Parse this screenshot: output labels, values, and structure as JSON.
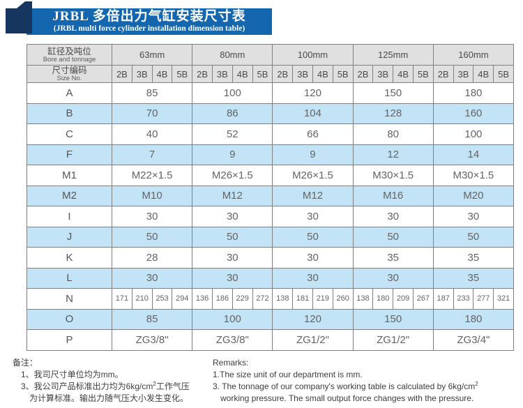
{
  "banner": {
    "title": "JRBL 多倍出力气缸安装尺寸表",
    "subtitle": "(JRBL multi force cylinder installation dimension table)",
    "banner_color": "#1467ae",
    "accent_color": "#16355f"
  },
  "table": {
    "corner_row1": {
      "zh": "缸径及吨位",
      "en": "Bore and tonnage"
    },
    "corner_row2": {
      "zh": "尺寸编码",
      "en": "Size No."
    },
    "groups": [
      "63mm",
      "80mm",
      "100mm",
      "125mm",
      "160mm"
    ],
    "sub_columns": [
      "2B",
      "3B",
      "4B",
      "5B"
    ],
    "rows": [
      {
        "label": "A",
        "shade": "w",
        "values": [
          "85",
          "100",
          "120",
          "150",
          "180"
        ]
      },
      {
        "label": "B",
        "shade": "b",
        "values": [
          "70",
          "86",
          "104",
          "128",
          "160"
        ]
      },
      {
        "label": "C",
        "shade": "w",
        "values": [
          "40",
          "52",
          "66",
          "80",
          "100"
        ]
      },
      {
        "label": "F",
        "shade": "b",
        "values": [
          "7",
          "9",
          "9",
          "12",
          "14"
        ]
      },
      {
        "label": "M1",
        "shade": "w",
        "values": [
          "M22×1.5",
          "M26×1.5",
          "M26×1.5",
          "M30×1.5",
          "M30×1.5"
        ]
      },
      {
        "label": "M2",
        "shade": "b",
        "values": [
          "M10",
          "M12",
          "M12",
          "M16",
          "M20"
        ]
      },
      {
        "label": "I",
        "shade": "w",
        "values": [
          "30",
          "30",
          "30",
          "30",
          "30"
        ]
      },
      {
        "label": "J",
        "shade": "b",
        "values": [
          "50",
          "50",
          "50",
          "50",
          "50"
        ]
      },
      {
        "label": "K",
        "shade": "w",
        "values": [
          "28",
          "30",
          "30",
          "35",
          "35"
        ]
      },
      {
        "label": "L",
        "shade": "b",
        "values": [
          "30",
          "30",
          "30",
          "30",
          "35"
        ]
      },
      {
        "label": "N",
        "shade": "w",
        "sub_values": [
          [
            "171",
            "210",
            "253",
            "294"
          ],
          [
            "136",
            "186",
            "229",
            "272"
          ],
          [
            "138",
            "181",
            "219",
            "260"
          ],
          [
            "138",
            "180",
            "209",
            "267"
          ],
          [
            "187",
            "233",
            "277",
            "321"
          ]
        ]
      },
      {
        "label": "O",
        "shade": "b",
        "values": [
          "85",
          "100",
          "120",
          "150",
          "180"
        ]
      },
      {
        "label": "P",
        "shade": "w",
        "values": [
          "ZG3/8\"",
          "ZG3/8\"",
          "ZG1/2\"",
          "ZG1/2\"",
          "ZG3/4\""
        ]
      }
    ],
    "colors": {
      "row_blue": "#c3e3f6",
      "header_gray": "#e0e0e0",
      "border_gray": "#7f7f7f",
      "border_blue": "#4b8fc0"
    }
  },
  "footer": {
    "left": {
      "heading": "备注：",
      "note1": "1、我司尺寸单位均为mm。",
      "note2_pre": "3、我公司产品标准出力均为6kg/cm",
      "note2_sup": "2",
      "note2_post": "工作气压",
      "note2_cont": "为计算标准。输出力随气压大小发生变化。"
    },
    "right": {
      "heading": "Remarks:",
      "note1": "1.The size unit of our department is mm.",
      "note2_pre": "3. The tonnage of our company's working table is calculated by 6kg/cm",
      "note2_sup": "2",
      "note2_cont": "working pressure. The small output force changes with the pressure."
    }
  }
}
